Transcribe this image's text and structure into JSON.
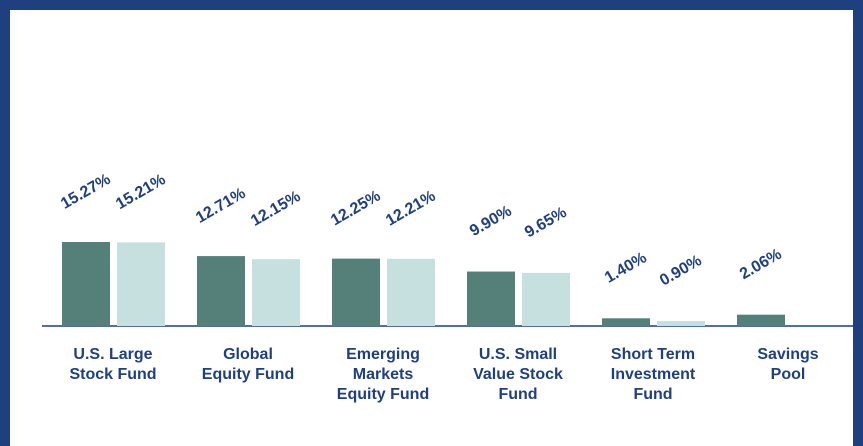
{
  "chart_data": {
    "type": "bar",
    "categories": [
      "U.S. Large\nStock Fund",
      "Global\nEquity Fund",
      "Emerging\nMarkets\nEquity Fund",
      "U.S. Small\nValue Stock\nFund",
      "Short Term\nInvestment\nFund",
      "Savings\nPool"
    ],
    "series": [
      {
        "color": "#557f79",
        "values": [
          15.27,
          12.71,
          12.25,
          9.9,
          1.4,
          2.06
        ],
        "value_labels": [
          "15.27%",
          "12.71%",
          "12.25%",
          "9.90%",
          "1.40%",
          "2.06%"
        ]
      },
      {
        "color": "#c6e0df",
        "values": [
          15.21,
          12.15,
          12.21,
          9.65,
          0.9,
          null
        ],
        "value_labels": [
          "15.21%",
          "12.15%",
          "12.21%",
          "9.65%",
          "0.90%",
          null
        ]
      }
    ]
  }
}
